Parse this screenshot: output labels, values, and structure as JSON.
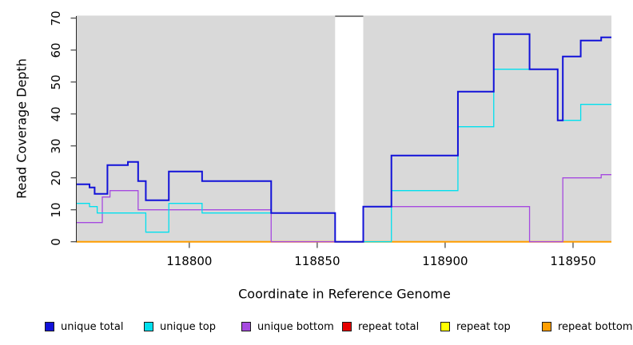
{
  "chart_data": {
    "type": "line",
    "subtype": "step-coverage-plot",
    "title": "",
    "xlabel": "Coordinate in Reference Genome",
    "ylabel": "Read Coverage Depth",
    "xlim": [
      118756,
      118965
    ],
    "ylim": [
      0,
      70
    ],
    "x_ticks": [
      118800,
      118850,
      118900,
      118950
    ],
    "y_ticks": [
      0,
      10,
      20,
      30,
      40,
      50,
      60,
      70
    ],
    "grid": false,
    "plot_background_color": "#d9d9d9",
    "gap_background_color": "#ffffff",
    "shaded_regions": [
      [
        118756,
        118857
      ],
      [
        118868,
        118965
      ]
    ],
    "gap_region": [
      118857,
      118868
    ],
    "legend_position": "bottom",
    "series": [
      {
        "name": "unique total",
        "color": "#1212d9",
        "line_width": 2,
        "steps": [
          [
            118756,
            18
          ],
          [
            118761,
            17
          ],
          [
            118763,
            15
          ],
          [
            118768,
            24
          ],
          [
            118776,
            25
          ],
          [
            118780,
            19
          ],
          [
            118783,
            13
          ],
          [
            118792,
            22
          ],
          [
            118805,
            19
          ],
          [
            118832,
            9
          ],
          [
            118857,
            0
          ],
          [
            118868,
            11
          ],
          [
            118879,
            27
          ],
          [
            118905,
            47
          ],
          [
            118919,
            65
          ],
          [
            118933,
            54
          ],
          [
            118944,
            38
          ],
          [
            118946,
            58
          ],
          [
            118953,
            63
          ],
          [
            118961,
            64
          ]
        ],
        "x_end": 118965
      },
      {
        "name": "unique top",
        "color": "#00e0ee",
        "line_width": 1.3,
        "steps": [
          [
            118756,
            12
          ],
          [
            118761,
            11
          ],
          [
            118764,
            9
          ],
          [
            118783,
            3
          ],
          [
            118792,
            12
          ],
          [
            118805,
            9
          ],
          [
            118857,
            0
          ],
          [
            118879,
            16
          ],
          [
            118905,
            36
          ],
          [
            118919,
            54
          ],
          [
            118944,
            38
          ],
          [
            118953,
            43
          ]
        ],
        "x_end": 118965
      },
      {
        "name": "unique bottom",
        "color": "#a64ae0",
        "line_width": 1.3,
        "steps": [
          [
            118756,
            6
          ],
          [
            118766,
            14
          ],
          [
            118769,
            16
          ],
          [
            118780,
            10
          ],
          [
            118832,
            0
          ],
          [
            118868,
            11
          ],
          [
            118933,
            0
          ],
          [
            118946,
            20
          ],
          [
            118961,
            21
          ]
        ],
        "x_end": 118965
      },
      {
        "name": "repeat total",
        "color": "#e60000",
        "line_width": 1.3,
        "steps": [
          [
            118756,
            0
          ]
        ],
        "x_end": 118965
      },
      {
        "name": "repeat top",
        "color": "#ffff00",
        "line_width": 1.3,
        "steps": [
          [
            118756,
            0
          ]
        ],
        "x_end": 118965
      },
      {
        "name": "repeat bottom",
        "color": "#ff9e00",
        "line_width": 2,
        "steps": [
          [
            118756,
            0
          ]
        ],
        "x_end": 118965
      }
    ],
    "legend_entries": [
      "unique total",
      "unique top",
      "unique bottom",
      "repeat total",
      "repeat top",
      "repeat bottom"
    ]
  },
  "axes": {
    "x_tick_labels": [
      "118800",
      "118850",
      "118900",
      "118950"
    ],
    "y_tick_labels": [
      "0",
      "10",
      "20",
      "30",
      "40",
      "50",
      "60",
      "70"
    ]
  }
}
